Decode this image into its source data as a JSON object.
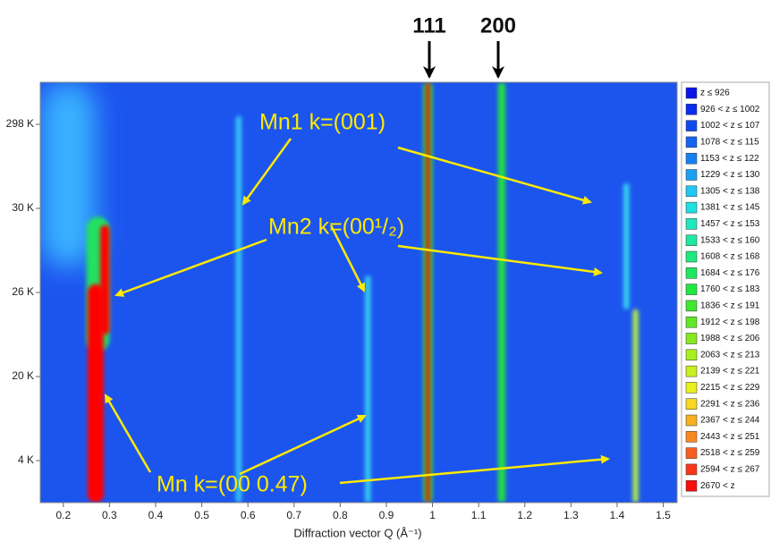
{
  "chart_data": {
    "type": "heatmap",
    "xlabel": "Diffraction vector Q (Å⁻¹)",
    "xlim": [
      0.15,
      1.53
    ],
    "xticks": [
      0.2,
      0.3,
      0.4,
      0.5,
      0.6,
      0.7,
      0.8,
      0.9,
      1,
      1.1,
      1.2,
      1.3,
      1.4,
      1.5
    ],
    "ylim": [
      0,
      5
    ],
    "yticks": [
      {
        "value": 0.5,
        "label": "4 K"
      },
      {
        "value": 1.5,
        "label": "20 K"
      },
      {
        "value": 2.5,
        "label": "26 K"
      },
      {
        "value": 3.5,
        "label": "30 K"
      },
      {
        "value": 4.5,
        "label": "298 K"
      }
    ],
    "background": "#1c55ee",
    "features": [
      {
        "q": 0.21,
        "q_width": 0.12,
        "y": [
          2.8,
          5
        ],
        "color": "#38b0ff"
      },
      {
        "q": 0.58,
        "q_width": 0.012,
        "y": [
          0,
          4.6
        ],
        "color": "#35c8f5"
      },
      {
        "q": 0.86,
        "q_width": 0.012,
        "y": [
          0,
          2.7
        ],
        "color": "#35d0f0"
      },
      {
        "q": 1.42,
        "q_width": 0.012,
        "y": [
          2.3,
          3.8
        ],
        "color": "#35d8f0"
      },
      {
        "q": 1.44,
        "q_width": 0.012,
        "y": [
          0,
          2.3
        ],
        "color": "#b8f040"
      },
      {
        "q": 1.15,
        "q_width": 0.016,
        "y": [
          0,
          5
        ],
        "color": "#20e040"
      },
      {
        "q": 0.275,
        "q_width": 0.05,
        "y": [
          1.8,
          3.4
        ],
        "color": "#20e060"
      },
      {
        "q": 0.27,
        "q_width": 0.035,
        "y": [
          0,
          2.6
        ],
        "color": "#ff0000"
      },
      {
        "q": 0.29,
        "q_width": 0.02,
        "y": [
          2.0,
          3.3
        ],
        "color": "#ff0000"
      },
      {
        "q": 0.99,
        "q_width": 0.02,
        "y": [
          0,
          5
        ],
        "color": "#20e040"
      },
      {
        "q": 0.99,
        "q_width": 0.008,
        "y": [
          0,
          5
        ],
        "color": "#ff0000"
      }
    ],
    "peak_labels": [
      "111",
      "200"
    ],
    "annotations": [
      "Mn1 k=(001)",
      "Mn2 k=(00¹/₂)",
      "Mn k=(00 0.47)"
    ],
    "legend": [
      {
        "label": "z ≤ 926",
        "color": "#0a14e8"
      },
      {
        "label": "926 < z ≤ 1002",
        "color": "#0c2cf0"
      },
      {
        "label": "1002 < z ≤ 107",
        "color": "#1048f0"
      },
      {
        "label": "1078 < z ≤ 115",
        "color": "#1464f0"
      },
      {
        "label": "1153 < z ≤ 122",
        "color": "#1880f2"
      },
      {
        "label": "1229 < z ≤ 130",
        "color": "#1ca0f4"
      },
      {
        "label": "1305 < z ≤ 138",
        "color": "#20c8f4"
      },
      {
        "label": "1381 < z ≤ 145",
        "color": "#20e0e0"
      },
      {
        "label": "1457 < z ≤ 153",
        "color": "#20e8c0"
      },
      {
        "label": "1533 < z ≤ 160",
        "color": "#20e8a0"
      },
      {
        "label": "1608 < z ≤ 168",
        "color": "#20e880"
      },
      {
        "label": "1684 < z ≤ 176",
        "color": "#20e860"
      },
      {
        "label": "1760 < z ≤ 183",
        "color": "#20e840"
      },
      {
        "label": "1836 < z ≤ 191",
        "color": "#40e830"
      },
      {
        "label": "1912 < z ≤ 198",
        "color": "#60e828"
      },
      {
        "label": "1988 < z ≤ 206",
        "color": "#88e820"
      },
      {
        "label": "2063 < z ≤ 213",
        "color": "#a8f020"
      },
      {
        "label": "2139 < z ≤ 221",
        "color": "#c8f020"
      },
      {
        "label": "2215 < z ≤ 229",
        "color": "#e8f020"
      },
      {
        "label": "2291 < z ≤ 236",
        "color": "#f8d820"
      },
      {
        "label": "2367 < z ≤ 244",
        "color": "#f8b020"
      },
      {
        "label": "2443 < z ≤ 251",
        "color": "#f88820"
      },
      {
        "label": "2518 < z ≤ 259",
        "color": "#f86020"
      },
      {
        "label": "2594 < z ≤ 267",
        "color": "#f83818"
      },
      {
        "label": "2670 < z",
        "color": "#f80c0c"
      }
    ]
  }
}
